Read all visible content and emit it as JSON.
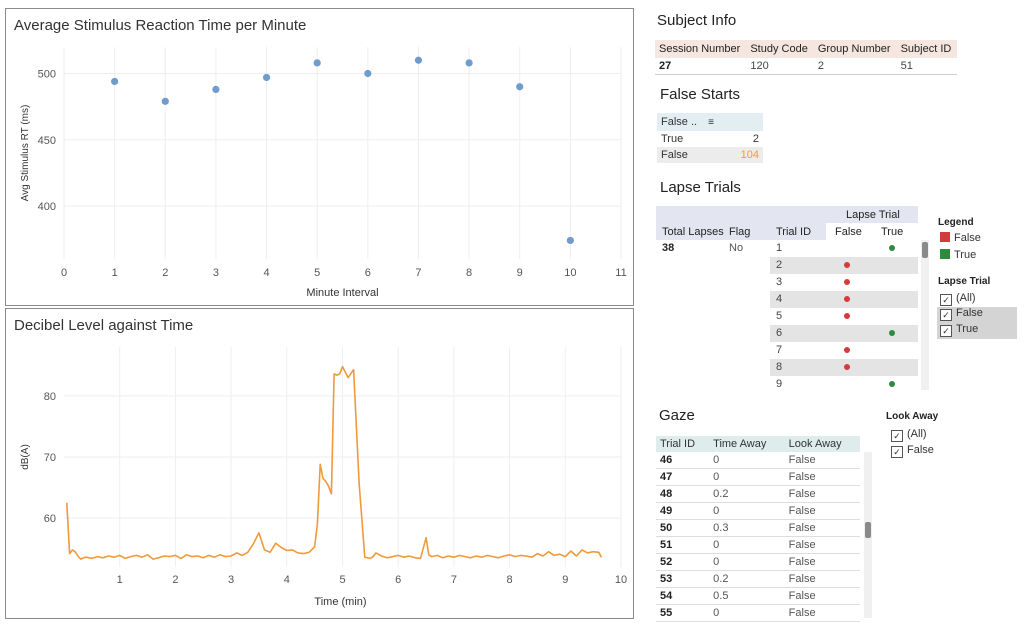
{
  "rt_panel": {
    "title": "Average Stimulus Reaction Time per Minute"
  },
  "db_panel": {
    "title": "Decibel Level against Time"
  },
  "chart_data": [
    {
      "type": "scatter",
      "title": "Average Stimulus Reaction Time per Minute",
      "xlabel": "Minute Interval",
      "ylabel": "Avg Stimulus RT (ms)",
      "xlim": [
        0,
        11
      ],
      "ylim": [
        360,
        520
      ],
      "xticks": [
        "0",
        "1",
        "2",
        "3",
        "4",
        "5",
        "6",
        "7",
        "8",
        "9",
        "10",
        "11"
      ],
      "yticks": [
        "400",
        "450",
        "500"
      ],
      "x": [
        1,
        2,
        3,
        4,
        5,
        6,
        7,
        8,
        9,
        10
      ],
      "y": [
        494,
        479,
        488,
        497,
        508,
        500,
        510,
        508,
        490,
        374
      ],
      "color": "#6f9ccc",
      "grid": true
    },
    {
      "type": "line",
      "title": "Decibel Level against Time",
      "xlabel": "Time (min)",
      "ylabel": "dB(A)",
      "xlim": [
        0,
        10
      ],
      "ylim": [
        52,
        88
      ],
      "xticks": [
        "1",
        "2",
        "3",
        "4",
        "5",
        "6",
        "7",
        "8",
        "9",
        "10"
      ],
      "yticks": [
        "60",
        "70",
        "80"
      ],
      "color": "#ef9a3a",
      "grid": true,
      "x": [
        0.05,
        0.1,
        0.15,
        0.2,
        0.25,
        0.3,
        0.35,
        0.4,
        0.5,
        0.6,
        0.7,
        0.8,
        0.9,
        1.0,
        1.1,
        1.2,
        1.3,
        1.4,
        1.5,
        1.6,
        1.7,
        1.8,
        1.9,
        2.0,
        2.1,
        2.2,
        2.3,
        2.4,
        2.5,
        2.6,
        2.7,
        2.8,
        2.9,
        3.0,
        3.1,
        3.2,
        3.3,
        3.4,
        3.5,
        3.6,
        3.7,
        3.8,
        3.9,
        4.0,
        4.1,
        4.2,
        4.3,
        4.4,
        4.5,
        4.55,
        4.6,
        4.65,
        4.7,
        4.75,
        4.8,
        4.85,
        4.9,
        4.95,
        5.0,
        5.1,
        5.2,
        5.3,
        5.4,
        5.5,
        5.55,
        5.6,
        5.7,
        5.8,
        5.9,
        6.0,
        6.1,
        6.2,
        6.3,
        6.4,
        6.5,
        6.55,
        6.6,
        6.7,
        6.8,
        6.9,
        7.0,
        7.1,
        7.2,
        7.3,
        7.4,
        7.5,
        7.6,
        7.7,
        7.8,
        7.9,
        8.0,
        8.1,
        8.2,
        8.3,
        8.4,
        8.5,
        8.6,
        8.7,
        8.8,
        8.9,
        9.0,
        9.1,
        9.2,
        9.3,
        9.4,
        9.5,
        9.6,
        9.65
      ],
      "y": [
        62.5,
        54.2,
        54.8,
        54.5,
        53.8,
        53.3,
        53.5,
        53.6,
        53.4,
        53.7,
        53.5,
        53.8,
        53.6,
        53.9,
        53.4,
        53.7,
        53.9,
        53.6,
        54.0,
        53.3,
        53.5,
        53.8,
        53.7,
        53.9,
        53.4,
        54.0,
        53.7,
        53.8,
        53.5,
        53.9,
        53.6,
        54.0,
        53.7,
        53.8,
        54.3,
        53.9,
        54.4,
        55.8,
        57.6,
        54.8,
        54.4,
        55.9,
        55.2,
        54.7,
        54.8,
        54.3,
        54.2,
        54.4,
        55.3,
        59.0,
        68.8,
        66.5,
        66.0,
        65.2,
        64.0,
        83.6,
        83.4,
        83.6,
        84.8,
        83.0,
        84.3,
        65.5,
        53.6,
        53.4,
        53.7,
        54.3,
        53.8,
        53.5,
        53.7,
        53.9,
        53.6,
        53.8,
        53.5,
        53.4,
        56.8,
        54.0,
        53.7,
        53.9,
        53.5,
        53.8,
        53.6,
        53.9,
        53.7,
        53.5,
        53.8,
        53.6,
        53.9,
        53.7,
        53.5,
        53.8,
        54.0,
        53.7,
        53.9,
        53.8,
        53.6,
        54.2,
        53.8,
        54.5,
        53.9,
        54.1,
        53.7,
        54.6,
        53.8,
        54.8,
        54.3,
        54.5,
        54.4,
        53.6
      ]
    }
  ],
  "subject_info": {
    "title": "Subject Info",
    "headers": [
      "Session Number",
      "Study Code",
      "Group Number",
      "Subject ID"
    ],
    "row": [
      "27",
      "120",
      "2",
      "51"
    ]
  },
  "false_starts": {
    "title": "False Starts",
    "header": "False ..",
    "sort_icon": "sort-icon",
    "rows": [
      {
        "label": "True",
        "value": "2"
      },
      {
        "label": "False",
        "value": "104"
      }
    ],
    "accent": "#ef9a3a"
  },
  "lapse_trials": {
    "title": "Lapse Trials",
    "group_header": "Lapse Trial",
    "col_total": "Total Lapses",
    "col_flag": "Flag",
    "col_trial": "Trial ID",
    "col_false": "False",
    "col_true": "True",
    "total": "38",
    "flag": "No",
    "rows": [
      {
        "id": "1",
        "mark": "true"
      },
      {
        "id": "2",
        "mark": "false"
      },
      {
        "id": "3",
        "mark": "false"
      },
      {
        "id": "4",
        "mark": "false"
      },
      {
        "id": "5",
        "mark": "false"
      },
      {
        "id": "6",
        "mark": "true"
      },
      {
        "id": "7",
        "mark": "false"
      },
      {
        "id": "8",
        "mark": "false"
      },
      {
        "id": "9",
        "mark": "true"
      }
    ]
  },
  "legend": {
    "title": "Legend",
    "items": [
      {
        "label": "False",
        "color": "#d63b3b"
      },
      {
        "label": "True",
        "color": "#2e8b3e"
      }
    ]
  },
  "lapse_filter": {
    "title": "Lapse Trial",
    "options": [
      {
        "label": "(All)",
        "checked": true
      },
      {
        "label": "False",
        "checked": true
      },
      {
        "label": "True",
        "checked": true
      }
    ]
  },
  "gaze": {
    "title": "Gaze",
    "headers": [
      "Trial ID",
      "Time Away",
      "Look Away"
    ],
    "rows": [
      [
        "46",
        "0",
        "False"
      ],
      [
        "47",
        "0",
        "False"
      ],
      [
        "48",
        "0.2",
        "False"
      ],
      [
        "49",
        "0",
        "False"
      ],
      [
        "50",
        "0.3",
        "False"
      ],
      [
        "51",
        "0",
        "False"
      ],
      [
        "52",
        "0",
        "False"
      ],
      [
        "53",
        "0.2",
        "False"
      ],
      [
        "54",
        "0.5",
        "False"
      ],
      [
        "55",
        "0",
        "False"
      ]
    ]
  },
  "look_away_filter": {
    "title": "Look Away",
    "options": [
      {
        "label": "(All)",
        "checked": true
      },
      {
        "label": "False",
        "checked": true
      }
    ]
  }
}
